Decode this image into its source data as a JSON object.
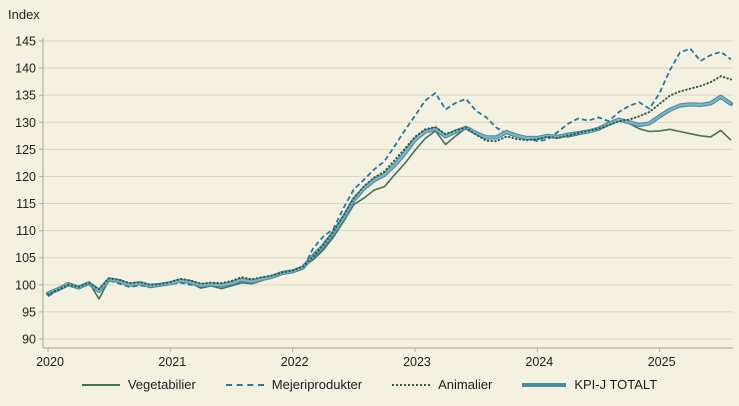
{
  "chart_title": "Index",
  "chart_data": {
    "type": "line",
    "title": "Index",
    "ylabel": "Index",
    "ylim": [
      90,
      145
    ],
    "y_ticks": [
      90,
      95,
      100,
      105,
      110,
      115,
      120,
      125,
      130,
      135,
      140,
      145
    ],
    "grid": true,
    "legend_position": "bottom",
    "x_unit": "month",
    "x_start": "2020-01",
    "x_end": "2025-08",
    "x_year_ticks": [
      {
        "label": "2020",
        "month_index": 0
      },
      {
        "label": "2021",
        "month_index": 12
      },
      {
        "label": "2022",
        "month_index": 24
      },
      {
        "label": "2023",
        "month_index": 36
      },
      {
        "label": "2024",
        "month_index": 48
      },
      {
        "label": "2025",
        "month_index": 60
      }
    ],
    "colors": {
      "background": "#f5f1e0",
      "gridline": "#dbd7c6",
      "axis": "#b5b1a2",
      "text": "#1f1f1f"
    },
    "series": [
      {
        "name": "Vegetabilier",
        "style": "solid",
        "color": "#47705a",
        "width": 1.6,
        "values": [
          98.6,
          99.4,
          100.4,
          99.5,
          100.5,
          97.4,
          101.0,
          100.6,
          99.9,
          100.2,
          99.5,
          99.8,
          100.2,
          100.6,
          100.3,
          99.4,
          99.8,
          99.3,
          99.8,
          100.4,
          100.2,
          100.8,
          101.5,
          102.2,
          102.5,
          103.3,
          104.6,
          106.4,
          108.8,
          111.7,
          114.8,
          116.0,
          117.5,
          118.1,
          120.3,
          122.4,
          124.8,
          127.0,
          128.4,
          125.9,
          127.5,
          128.9,
          128.0,
          127.4,
          127.0,
          128.2,
          127.4,
          127.0,
          126.8,
          127.4,
          127.6,
          127.3,
          127.7,
          128.2,
          129.0,
          130.0,
          130.6,
          129.8,
          128.8,
          128.3,
          128.4,
          128.7,
          128.3,
          127.9,
          127.5,
          127.3,
          128.5,
          126.7
        ]
      },
      {
        "name": "Mejeriprodukter",
        "style": "dashed",
        "color": "#2279a5",
        "width": 1.8,
        "values": [
          97.9,
          99.0,
          100.0,
          99.3,
          100.2,
          99.0,
          100.8,
          100.2,
          99.6,
          99.9,
          99.6,
          99.9,
          100.1,
          100.4,
          100.0,
          99.8,
          100.0,
          99.9,
          100.2,
          100.7,
          100.5,
          100.9,
          101.3,
          102.0,
          102.4,
          103.0,
          106.7,
          108.9,
          110.3,
          114.2,
          117.6,
          119.4,
          121.3,
          122.8,
          125.6,
          128.5,
          131.2,
          134.0,
          135.4,
          132.4,
          133.6,
          134.3,
          132.1,
          130.9,
          129.0,
          127.9,
          127.3,
          127.1,
          126.5,
          126.8,
          128.2,
          129.7,
          130.7,
          130.3,
          130.9,
          130.2,
          131.9,
          133.0,
          133.7,
          132.5,
          135.4,
          139.6,
          142.9,
          143.6,
          141.3,
          142.4,
          143.0,
          141.6
        ]
      },
      {
        "name": "Animalier",
        "style": "dotted",
        "color": "#2e5c53",
        "width": 2.0,
        "values": [
          98.2,
          99.1,
          100.0,
          99.6,
          100.3,
          99.2,
          101.2,
          100.9,
          100.3,
          100.5,
          100.0,
          100.1,
          100.5,
          101.1,
          100.8,
          100.2,
          100.4,
          100.3,
          100.7,
          101.4,
          101.0,
          101.4,
          101.7,
          102.3,
          102.6,
          103.3,
          105.2,
          107.3,
          109.8,
          112.8,
          116.0,
          118.2,
          119.8,
          120.9,
          123.0,
          125.1,
          127.3,
          128.7,
          129.1,
          127.8,
          128.5,
          129.0,
          127.7,
          126.6,
          126.5,
          127.4,
          126.9,
          126.7,
          126.9,
          127.3,
          127.1,
          127.6,
          128.0,
          128.4,
          128.8,
          129.5,
          130.2,
          130.5,
          131.1,
          131.9,
          133.4,
          134.9,
          135.7,
          136.2,
          136.7,
          137.4,
          138.5,
          137.9
        ]
      },
      {
        "name": "KPI-J TOTALT",
        "style": "solid",
        "color": "#7ab5c3",
        "outline_color": "#468ba0",
        "width": 2.2,
        "outline_width": 4.2,
        "values": [
          98.4,
          99.2,
          100.1,
          99.5,
          100.3,
          98.9,
          101.0,
          100.7,
          100.0,
          100.3,
          99.8,
          100.0,
          100.3,
          100.8,
          100.5,
          99.9,
          100.1,
          99.9,
          100.3,
          100.9,
          100.6,
          101.1,
          101.5,
          102.2,
          102.5,
          103.2,
          105.3,
          107.2,
          109.6,
          112.4,
          115.7,
          117.8,
          119.3,
          120.3,
          122.1,
          124.3,
          126.8,
          128.3,
          128.8,
          127.4,
          128.3,
          129.0,
          128.0,
          127.2,
          127.2,
          128.2,
          127.5,
          127.1,
          127.1,
          127.5,
          127.3,
          127.7,
          128.0,
          128.3,
          128.8,
          129.7,
          130.5,
          130.0,
          129.5,
          129.8,
          131.1,
          132.3,
          133.1,
          133.3,
          133.2,
          133.5,
          134.7,
          133.4
        ]
      }
    ]
  }
}
